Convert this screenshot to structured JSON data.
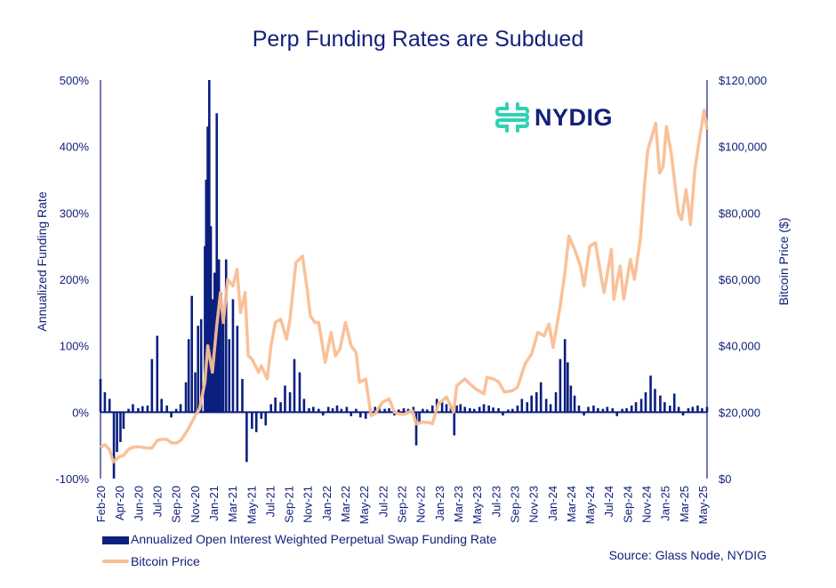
{
  "title": "Perp Funding Rates are Subdued",
  "logo": {
    "text": "NYDIG",
    "color": "#2fd1b5"
  },
  "source": "Source: Glass Node, NYDIG",
  "colors": {
    "funding": "#0b1f7f",
    "price": "#f9be93",
    "text": "#13217a"
  },
  "chart_data": {
    "type": "bar+line",
    "title": "Perp Funding Rates are Subdued",
    "y_left": {
      "label": "Annualized Funding Rate",
      "range": [
        -100,
        500
      ],
      "ticks": [
        -100,
        0,
        100,
        200,
        300,
        400,
        500
      ],
      "tick_labels": [
        "-100%",
        "0%",
        "100%",
        "200%",
        "300%",
        "400%",
        "500%"
      ]
    },
    "y_right": {
      "label": "Bitcoin Price ($)",
      "range": [
        0,
        120000
      ],
      "ticks": [
        0,
        20000,
        40000,
        60000,
        80000,
        100000,
        120000
      ],
      "tick_labels": [
        "$0",
        "$20,000",
        "$40,000",
        "$60,000",
        "$80,000",
        "$100,000",
        "$120,000"
      ]
    },
    "x_tick_labels": [
      "Feb-20",
      "Apr-20",
      "Jun-20",
      "Jul-20",
      "Sep-20",
      "Nov-20",
      "Jan-21",
      "Mar-21",
      "May-21",
      "Jul-21",
      "Sep-21",
      "Nov-21",
      "Jan-22",
      "Mar-22",
      "May-22",
      "Jul-22",
      "Sep-22",
      "Nov-22",
      "Jan-23",
      "Mar-23",
      "May-23",
      "Jul-23",
      "Sep-23",
      "Nov-23",
      "Jan-24",
      "Mar-24",
      "May-24",
      "Jul-24",
      "Sep-24",
      "Nov-24",
      "Jan-25",
      "Mar-25",
      "May-25"
    ],
    "x_range": [
      "2020-02-01",
      "2025-05-31"
    ],
    "legend": {
      "placement": "bottom-left"
    },
    "series": [
      {
        "name": "Annualized Open Interest Weighted Perpetual Swap Funding Rate",
        "type": "bar",
        "axis": "left",
        "points": [
          [
            "2020-02-01",
            50
          ],
          [
            "2020-02-15",
            30
          ],
          [
            "2020-03-01",
            20
          ],
          [
            "2020-03-15",
            -100
          ],
          [
            "2020-03-25",
            -60
          ],
          [
            "2020-04-05",
            -45
          ],
          [
            "2020-04-15",
            -25
          ],
          [
            "2020-05-01",
            5
          ],
          [
            "2020-05-15",
            12
          ],
          [
            "2020-06-01",
            6
          ],
          [
            "2020-06-15",
            9
          ],
          [
            "2020-07-01",
            10
          ],
          [
            "2020-07-15",
            80
          ],
          [
            "2020-08-01",
            115
          ],
          [
            "2020-08-15",
            20
          ],
          [
            "2020-09-01",
            10
          ],
          [
            "2020-09-15",
            -8
          ],
          [
            "2020-10-01",
            5
          ],
          [
            "2020-10-15",
            12
          ],
          [
            "2020-11-01",
            45
          ],
          [
            "2020-11-10",
            110
          ],
          [
            "2020-11-20",
            175
          ],
          [
            "2020-12-01",
            60
          ],
          [
            "2020-12-10",
            130
          ],
          [
            "2020-12-20",
            140
          ],
          [
            "2021-01-01",
            250
          ],
          [
            "2021-01-05",
            350
          ],
          [
            "2021-01-10",
            430
          ],
          [
            "2021-01-15",
            500
          ],
          [
            "2021-01-20",
            280
          ],
          [
            "2021-01-25",
            170
          ],
          [
            "2021-02-01",
            210
          ],
          [
            "2021-02-08",
            450
          ],
          [
            "2021-02-15",
            230
          ],
          [
            "2021-02-22",
            180
          ],
          [
            "2021-03-01",
            150
          ],
          [
            "2021-03-10",
            230
          ],
          [
            "2021-03-20",
            110
          ],
          [
            "2021-04-01",
            170
          ],
          [
            "2021-04-15",
            130
          ],
          [
            "2021-05-01",
            50
          ],
          [
            "2021-05-15",
            -75
          ],
          [
            "2021-06-01",
            -25
          ],
          [
            "2021-06-15",
            -30
          ],
          [
            "2021-07-01",
            -10
          ],
          [
            "2021-07-15",
            -20
          ],
          [
            "2021-08-01",
            12
          ],
          [
            "2021-08-15",
            22
          ],
          [
            "2021-09-01",
            15
          ],
          [
            "2021-09-15",
            40
          ],
          [
            "2021-10-01",
            30
          ],
          [
            "2021-10-15",
            80
          ],
          [
            "2021-11-01",
            60
          ],
          [
            "2021-11-15",
            20
          ],
          [
            "2021-12-01",
            6
          ],
          [
            "2021-12-15",
            8
          ],
          [
            "2022-01-01",
            5
          ],
          [
            "2022-01-15",
            -5
          ],
          [
            "2022-02-01",
            8
          ],
          [
            "2022-02-15",
            6
          ],
          [
            "2022-03-01",
            10
          ],
          [
            "2022-03-15",
            5
          ],
          [
            "2022-04-01",
            8
          ],
          [
            "2022-04-15",
            -6
          ],
          [
            "2022-05-01",
            5
          ],
          [
            "2022-05-15",
            -8
          ],
          [
            "2022-06-01",
            -10
          ],
          [
            "2022-06-15",
            6
          ],
          [
            "2022-07-01",
            8
          ],
          [
            "2022-07-15",
            10
          ],
          [
            "2022-08-01",
            5
          ],
          [
            "2022-08-15",
            6
          ],
          [
            "2022-09-01",
            -5
          ],
          [
            "2022-09-15",
            4
          ],
          [
            "2022-10-01",
            6
          ],
          [
            "2022-10-15",
            5
          ],
          [
            "2022-11-01",
            8
          ],
          [
            "2022-11-10",
            -50
          ],
          [
            "2022-11-20",
            -15
          ],
          [
            "2022-12-01",
            5
          ],
          [
            "2022-12-15",
            4
          ],
          [
            "2023-01-01",
            10
          ],
          [
            "2023-01-15",
            20
          ],
          [
            "2023-02-01",
            15
          ],
          [
            "2023-02-15",
            12
          ],
          [
            "2023-03-01",
            10
          ],
          [
            "2023-03-12",
            -35
          ],
          [
            "2023-03-20",
            10
          ],
          [
            "2023-04-01",
            12
          ],
          [
            "2023-04-15",
            8
          ],
          [
            "2023-05-01",
            6
          ],
          [
            "2023-05-15",
            5
          ],
          [
            "2023-06-01",
            8
          ],
          [
            "2023-06-15",
            12
          ],
          [
            "2023-07-01",
            10
          ],
          [
            "2023-07-15",
            7
          ],
          [
            "2023-08-01",
            6
          ],
          [
            "2023-08-15",
            -5
          ],
          [
            "2023-09-01",
            4
          ],
          [
            "2023-09-15",
            5
          ],
          [
            "2023-10-01",
            10
          ],
          [
            "2023-10-15",
            20
          ],
          [
            "2023-11-01",
            15
          ],
          [
            "2023-11-15",
            25
          ],
          [
            "2023-12-01",
            30
          ],
          [
            "2023-12-15",
            45
          ],
          [
            "2024-01-01",
            20
          ],
          [
            "2024-01-15",
            12
          ],
          [
            "2024-02-01",
            30
          ],
          [
            "2024-02-15",
            80
          ],
          [
            "2024-03-01",
            110
          ],
          [
            "2024-03-10",
            75
          ],
          [
            "2024-03-20",
            40
          ],
          [
            "2024-04-01",
            25
          ],
          [
            "2024-04-15",
            10
          ],
          [
            "2024-05-01",
            -5
          ],
          [
            "2024-05-15",
            8
          ],
          [
            "2024-06-01",
            10
          ],
          [
            "2024-06-15",
            6
          ],
          [
            "2024-07-01",
            5
          ],
          [
            "2024-07-15",
            8
          ],
          [
            "2024-08-01",
            6
          ],
          [
            "2024-08-15",
            -6
          ],
          [
            "2024-09-01",
            5
          ],
          [
            "2024-09-15",
            6
          ],
          [
            "2024-10-01",
            10
          ],
          [
            "2024-10-15",
            15
          ],
          [
            "2024-11-01",
            20
          ],
          [
            "2024-11-15",
            30
          ],
          [
            "2024-12-01",
            55
          ],
          [
            "2024-12-15",
            35
          ],
          [
            "2025-01-01",
            25
          ],
          [
            "2025-01-15",
            15
          ],
          [
            "2025-02-01",
            10
          ],
          [
            "2025-02-15",
            28
          ],
          [
            "2025-03-01",
            8
          ],
          [
            "2025-03-15",
            -5
          ],
          [
            "2025-04-01",
            6
          ],
          [
            "2025-04-15",
            8
          ],
          [
            "2025-05-01",
            10
          ],
          [
            "2025-05-15",
            6
          ],
          [
            "2025-05-31",
            8
          ]
        ]
      },
      {
        "name": "Bitcoin Price",
        "type": "line",
        "axis": "right",
        "points": [
          [
            "2020-02-01",
            9400
          ],
          [
            "2020-02-15",
            10200
          ],
          [
            "2020-03-01",
            8700
          ],
          [
            "2020-03-13",
            5000
          ],
          [
            "2020-04-01",
            6600
          ],
          [
            "2020-04-15",
            7000
          ],
          [
            "2020-05-01",
            8800
          ],
          [
            "2020-05-15",
            9400
          ],
          [
            "2020-06-01",
            9600
          ],
          [
            "2020-06-15",
            9400
          ],
          [
            "2020-07-01",
            9200
          ],
          [
            "2020-07-15",
            9200
          ],
          [
            "2020-08-01",
            11500
          ],
          [
            "2020-08-15",
            11800
          ],
          [
            "2020-09-01",
            11800
          ],
          [
            "2020-09-15",
            10800
          ],
          [
            "2020-10-01",
            10700
          ],
          [
            "2020-10-15",
            11500
          ],
          [
            "2020-11-01",
            13800
          ],
          [
            "2020-11-15",
            16000
          ],
          [
            "2020-12-01",
            19000
          ],
          [
            "2020-12-15",
            21000
          ],
          [
            "2021-01-01",
            29000
          ],
          [
            "2021-01-10",
            40000
          ],
          [
            "2021-01-25",
            32000
          ],
          [
            "2021-02-08",
            46000
          ],
          [
            "2021-02-20",
            56000
          ],
          [
            "2021-03-01",
            47000
          ],
          [
            "2021-03-15",
            60000
          ],
          [
            "2021-04-01",
            58000
          ],
          [
            "2021-04-14",
            63000
          ],
          [
            "2021-04-25",
            50000
          ],
          [
            "2021-05-10",
            56000
          ],
          [
            "2021-05-20",
            37000
          ],
          [
            "2021-06-01",
            36000
          ],
          [
            "2021-06-22",
            32000
          ],
          [
            "2021-07-01",
            34000
          ],
          [
            "2021-07-20",
            30000
          ],
          [
            "2021-08-01",
            40000
          ],
          [
            "2021-08-15",
            47000
          ],
          [
            "2021-09-01",
            48000
          ],
          [
            "2021-09-20",
            42000
          ],
          [
            "2021-10-01",
            48000
          ],
          [
            "2021-10-20",
            65000
          ],
          [
            "2021-11-10",
            67000
          ],
          [
            "2021-11-25",
            57000
          ],
          [
            "2021-12-05",
            49000
          ],
          [
            "2021-12-20",
            47000
          ],
          [
            "2022-01-01",
            47000
          ],
          [
            "2022-01-22",
            35000
          ],
          [
            "2022-02-10",
            44000
          ],
          [
            "2022-02-24",
            37000
          ],
          [
            "2022-03-10",
            39000
          ],
          [
            "2022-03-28",
            47000
          ],
          [
            "2022-04-15",
            40000
          ],
          [
            "2022-05-01",
            38000
          ],
          [
            "2022-05-12",
            29000
          ],
          [
            "2022-06-01",
            30000
          ],
          [
            "2022-06-18",
            19000
          ],
          [
            "2022-07-01",
            19500
          ],
          [
            "2022-07-25",
            23000
          ],
          [
            "2022-08-15",
            24000
          ],
          [
            "2022-09-01",
            20000
          ],
          [
            "2022-09-15",
            19500
          ],
          [
            "2022-10-01",
            19300
          ],
          [
            "2022-10-28",
            20500
          ],
          [
            "2022-11-10",
            16500
          ],
          [
            "2022-12-01",
            17000
          ],
          [
            "2022-12-25",
            16800
          ],
          [
            "2023-01-01",
            16500
          ],
          [
            "2023-01-20",
            22500
          ],
          [
            "2023-02-15",
            24500
          ],
          [
            "2023-03-10",
            20000
          ],
          [
            "2023-03-20",
            28000
          ],
          [
            "2023-04-15",
            30000
          ],
          [
            "2023-05-01",
            28500
          ],
          [
            "2023-05-20",
            27000
          ],
          [
            "2023-06-15",
            25500
          ],
          [
            "2023-06-25",
            30500
          ],
          [
            "2023-07-15",
            30000
          ],
          [
            "2023-08-01",
            29200
          ],
          [
            "2023-08-20",
            26000
          ],
          [
            "2023-09-15",
            26500
          ],
          [
            "2023-10-01",
            27500
          ],
          [
            "2023-10-25",
            34500
          ],
          [
            "2023-11-15",
            37500
          ],
          [
            "2023-12-05",
            44000
          ],
          [
            "2023-12-25",
            43000
          ],
          [
            "2024-01-10",
            46500
          ],
          [
            "2024-01-23",
            39500
          ],
          [
            "2024-02-15",
            52000
          ],
          [
            "2024-03-01",
            62000
          ],
          [
            "2024-03-14",
            73000
          ],
          [
            "2024-04-01",
            69000
          ],
          [
            "2024-04-20",
            64000
          ],
          [
            "2024-05-01",
            58000
          ],
          [
            "2024-05-20",
            70000
          ],
          [
            "2024-06-07",
            71000
          ],
          [
            "2024-06-25",
            61000
          ],
          [
            "2024-07-05",
            56000
          ],
          [
            "2024-07-28",
            69000
          ],
          [
            "2024-08-05",
            54000
          ],
          [
            "2024-08-25",
            64000
          ],
          [
            "2024-09-06",
            54000
          ],
          [
            "2024-09-27",
            66000
          ],
          [
            "2024-10-10",
            60000
          ],
          [
            "2024-10-29",
            72000
          ],
          [
            "2024-11-12",
            89000
          ],
          [
            "2024-11-22",
            99000
          ],
          [
            "2024-12-05",
            103000
          ],
          [
            "2024-12-17",
            107000
          ],
          [
            "2024-12-30",
            92000
          ],
          [
            "2025-01-10",
            94000
          ],
          [
            "2025-01-21",
            106000
          ],
          [
            "2025-02-05",
            98000
          ],
          [
            "2025-02-28",
            80000
          ],
          [
            "2025-03-10",
            78000
          ],
          [
            "2025-03-25",
            87000
          ],
          [
            "2025-04-08",
            76500
          ],
          [
            "2025-04-22",
            93000
          ],
          [
            "2025-05-08",
            103000
          ],
          [
            "2025-05-22",
            111000
          ],
          [
            "2025-05-31",
            105000
          ]
        ]
      }
    ]
  }
}
